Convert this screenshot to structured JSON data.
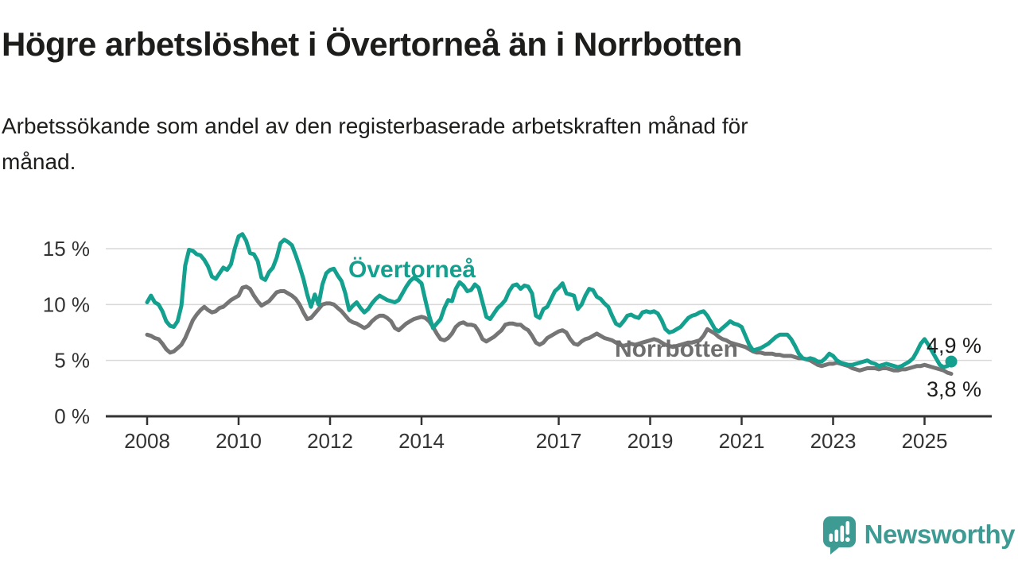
{
  "header": {
    "title": "Högre arbetslöshet i Övertorneå än i Norrbotten",
    "subtitle_line1": "Arbetssökande som andel av den registerbaserade arbetskraften månad för",
    "subtitle_line2": "månad."
  },
  "footer": {
    "brand": "Newsworthy",
    "logo_icon": "speech-bubble-bar-chart-icon",
    "brand_color": "#3E9B94"
  },
  "colors": {
    "grid": "#D9D9D9",
    "axis": "#333333",
    "text": "#1D1D1B",
    "overtornea": "#13A08E",
    "norrbotten": "#757575",
    "norrbotten_label": "#6E6E6E"
  },
  "chart_data": {
    "type": "line",
    "title": "Högre arbetslöshet i Övertorneå än i Norrbotten",
    "subtitle": "Arbetssökande som andel av den registerbaserade arbetskraften månad för månad.",
    "frequency": "monthly",
    "x_start": "2008-01",
    "x_end": "2025-08",
    "grid": "horizontal",
    "legend_position": "inline-labels",
    "y_axis": {
      "unit": "%",
      "ticks": [
        0,
        5,
        10,
        15
      ],
      "tick_labels": [
        "0 %",
        "5 %",
        "10 %",
        "15 %"
      ],
      "range": [
        0,
        17.5
      ]
    },
    "x_axis": {
      "tick_years": [
        2008,
        2010,
        2012,
        2014,
        2017,
        2019,
        2021,
        2023,
        2025
      ],
      "tick_labels": [
        "2008",
        "2010",
        "2012",
        "2014",
        "2017",
        "2019",
        "2021",
        "2023",
        "2025"
      ]
    },
    "series": [
      {
        "name": "Övertorneå",
        "color": "#13A08E",
        "end_value": 4.9,
        "end_label": "4,9 %",
        "values": [
          10.2,
          10.8,
          10.2,
          10.0,
          9.4,
          8.5,
          8.1,
          8.0,
          8.5,
          9.9,
          13.5,
          14.9,
          14.8,
          14.5,
          14.4,
          14.0,
          13.4,
          12.5,
          12.3,
          12.8,
          13.3,
          13.1,
          13.6,
          15.0,
          16.1,
          16.3,
          15.7,
          14.6,
          14.5,
          13.9,
          12.4,
          12.2,
          12.9,
          13.3,
          14.2,
          15.5,
          15.8,
          15.6,
          15.3,
          14.4,
          13.4,
          12.3,
          10.9,
          9.8,
          10.9,
          10.0,
          11.8,
          12.8,
          13.1,
          13.2,
          12.6,
          12.1,
          11.0,
          9.5,
          9.9,
          10.2,
          9.7,
          9.3,
          9.6,
          10.1,
          10.5,
          10.8,
          10.6,
          10.4,
          10.3,
          10.2,
          10.4,
          11.0,
          11.6,
          12.1,
          12.4,
          12.2,
          11.9,
          10.4,
          9.0,
          7.9,
          8.3,
          8.7,
          9.7,
          10.4,
          10.3,
          11.4,
          12.0,
          11.7,
          11.2,
          11.3,
          11.8,
          11.5,
          10.2,
          8.9,
          8.7,
          9.2,
          9.7,
          10.0,
          10.4,
          11.2,
          11.7,
          11.8,
          11.4,
          11.7,
          11.6,
          11.0,
          9.0,
          8.8,
          9.6,
          9.8,
          10.5,
          11.2,
          11.5,
          11.9,
          11.0,
          10.9,
          10.8,
          9.6,
          10.0,
          10.8,
          11.4,
          11.3,
          10.7,
          10.5,
          10.1,
          9.8,
          9.0,
          8.3,
          8.1,
          8.5,
          9.0,
          9.1,
          8.9,
          8.8,
          9.3,
          9.4,
          9.3,
          9.4,
          9.2,
          8.6,
          7.8,
          7.5,
          7.6,
          7.8,
          8.0,
          8.4,
          8.8,
          9.0,
          9.1,
          9.3,
          9.4,
          9.0,
          8.4,
          7.8,
          7.6,
          7.9,
          8.2,
          8.5,
          8.3,
          8.2,
          8.0,
          7.2,
          6.4,
          5.9,
          6.0,
          6.1,
          6.3,
          6.5,
          6.8,
          7.1,
          7.3,
          7.3,
          7.3,
          6.9,
          6.3,
          5.6,
          5.2,
          5.1,
          5.2,
          5.1,
          4.9,
          4.9,
          5.2,
          5.6,
          5.4,
          5.0,
          4.8,
          4.7,
          4.6,
          4.6,
          4.7,
          4.8,
          4.9,
          5.0,
          4.8,
          4.7,
          4.5,
          4.6,
          4.7,
          4.6,
          4.5,
          4.4,
          4.5,
          4.7,
          4.9,
          5.2,
          5.8,
          6.5,
          6.9,
          6.4,
          5.8,
          5.2,
          4.6,
          4.4,
          4.5,
          4.9
        ]
      },
      {
        "name": "Norrbotten",
        "color": "#757575",
        "end_value": 3.8,
        "end_label": "3,8 %",
        "values": [
          7.3,
          7.2,
          7.0,
          6.9,
          6.5,
          6.0,
          5.7,
          5.8,
          6.1,
          6.4,
          7.0,
          7.8,
          8.6,
          9.1,
          9.5,
          9.8,
          9.5,
          9.3,
          9.4,
          9.7,
          9.8,
          10.1,
          10.4,
          10.6,
          10.8,
          11.5,
          11.6,
          11.4,
          10.8,
          10.3,
          9.9,
          10.1,
          10.3,
          10.7,
          11.1,
          11.2,
          11.2,
          11.0,
          10.8,
          10.5,
          10.0,
          9.3,
          8.7,
          8.8,
          9.2,
          9.6,
          10.0,
          10.1,
          10.1,
          10.0,
          9.7,
          9.4,
          9.0,
          8.6,
          8.4,
          8.3,
          8.1,
          7.9,
          8.1,
          8.5,
          8.8,
          9.0,
          9.0,
          8.8,
          8.5,
          7.9,
          7.7,
          8.0,
          8.3,
          8.5,
          8.7,
          8.8,
          8.9,
          8.8,
          8.5,
          8.0,
          7.4,
          6.9,
          6.8,
          7.0,
          7.4,
          8.0,
          8.3,
          8.4,
          8.2,
          8.2,
          8.1,
          7.6,
          6.9,
          6.7,
          6.9,
          7.1,
          7.4,
          7.7,
          8.2,
          8.3,
          8.3,
          8.2,
          8.2,
          7.9,
          7.7,
          7.2,
          6.6,
          6.4,
          6.6,
          7.0,
          7.2,
          7.4,
          7.6,
          7.7,
          7.5,
          6.9,
          6.5,
          6.4,
          6.7,
          6.9,
          7.0,
          7.2,
          7.4,
          7.2,
          7.0,
          6.9,
          6.8,
          6.6,
          6.4,
          6.3,
          6.4,
          6.5,
          6.4,
          6.5,
          6.6,
          6.7,
          6.8,
          6.9,
          6.8,
          6.6,
          6.4,
          6.3,
          6.2,
          6.3,
          6.4,
          6.5,
          6.6,
          6.6,
          6.7,
          6.8,
          7.2,
          7.8,
          7.6,
          7.4,
          7.1,
          6.9,
          6.8,
          6.6,
          6.5,
          6.4,
          6.3,
          6.2,
          6.0,
          5.8,
          5.7,
          5.7,
          5.6,
          5.6,
          5.6,
          5.5,
          5.5,
          5.4,
          5.4,
          5.4,
          5.3,
          5.2,
          5.2,
          5.1,
          5.0,
          4.8,
          4.6,
          4.5,
          4.6,
          4.7,
          4.7,
          4.8,
          4.7,
          4.6,
          4.5,
          4.3,
          4.2,
          4.1,
          4.2,
          4.3,
          4.3,
          4.3,
          4.2,
          4.3,
          4.3,
          4.2,
          4.1,
          4.1,
          4.2,
          4.2,
          4.3,
          4.4,
          4.5,
          4.5,
          4.6,
          4.5,
          4.4,
          4.3,
          4.2,
          4.1,
          3.9,
          3.8
        ]
      }
    ]
  }
}
